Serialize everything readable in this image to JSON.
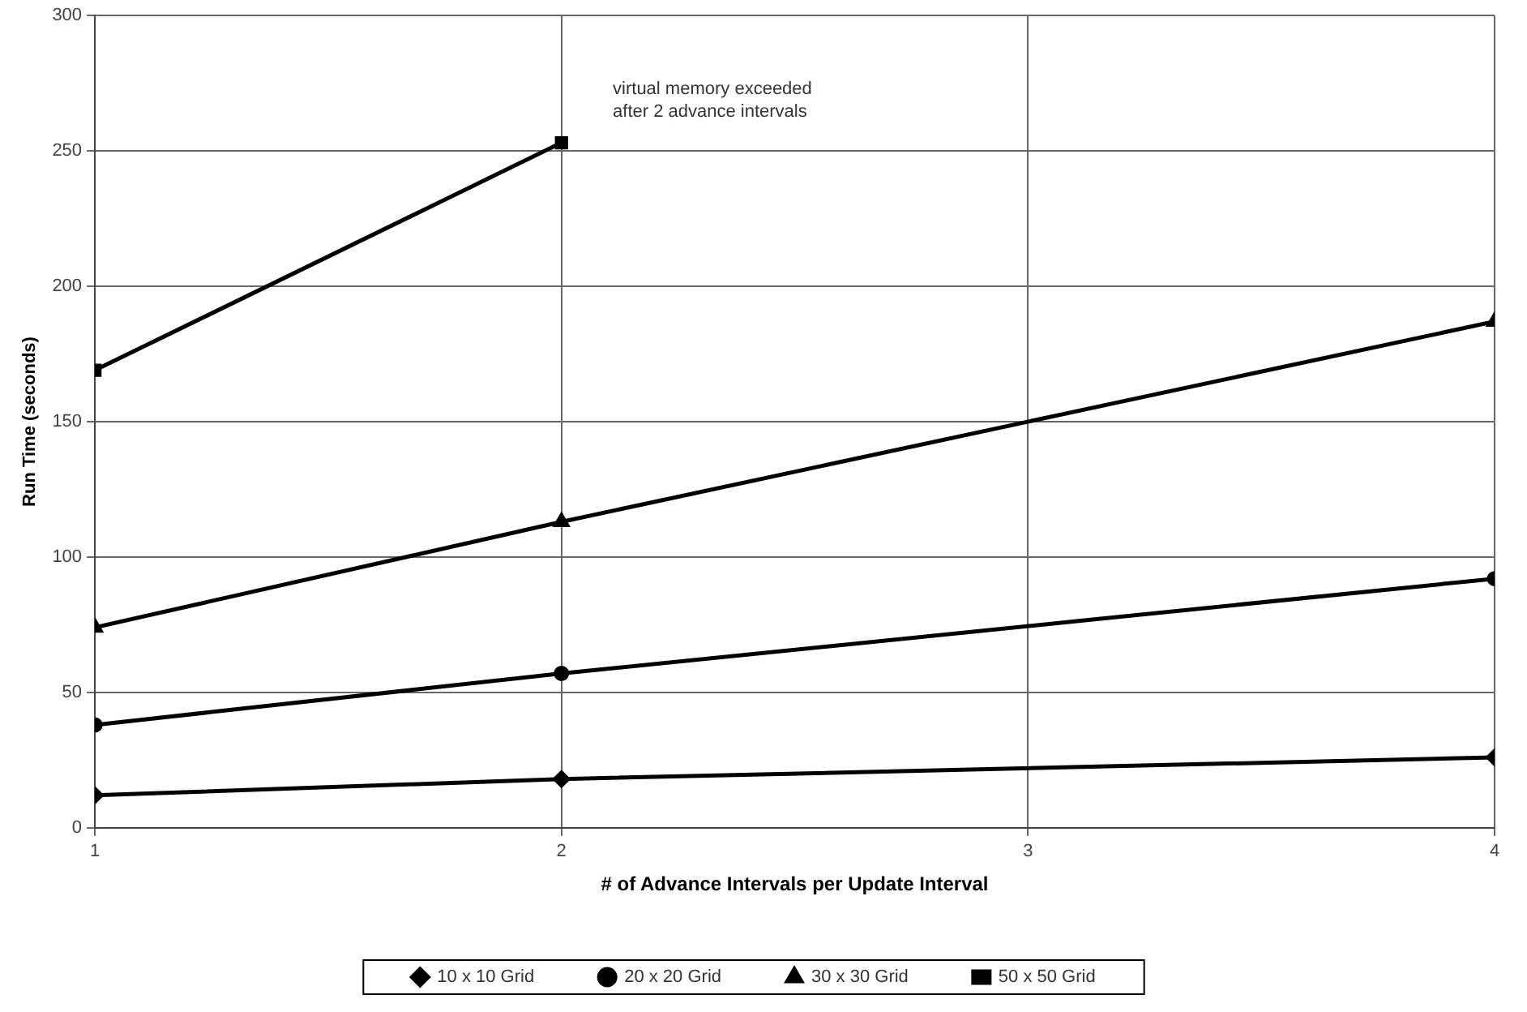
{
  "chart_data": {
    "type": "line",
    "xlabel": "# of Advance Intervals per Update Interval",
    "ylabel": "Run Time (seconds)",
    "x": [
      1,
      2,
      4
    ],
    "series": [
      {
        "name": "10 x 10 Grid",
        "color": "#000000",
        "marker": "diamond",
        "values": [
          12,
          18,
          26
        ]
      },
      {
        "name": "20 x 20 Grid",
        "color": "#000000",
        "marker": "circle",
        "values": [
          38,
          57,
          92
        ]
      },
      {
        "name": "30 x 30 Grid",
        "color": "#000000",
        "marker": "triangle",
        "values": [
          74,
          113,
          187
        ]
      },
      {
        "name": "50 x 50 Grid",
        "color": "#000000",
        "marker": "square",
        "values": [
          169,
          253,
          null
        ]
      }
    ],
    "xlim": [
      1,
      4
    ],
    "xticks": [
      1,
      2,
      3,
      4
    ],
    "ylim": [
      0,
      300
    ],
    "yticks": [
      0,
      50,
      100,
      150,
      200,
      250,
      300
    ],
    "grid": true,
    "legend": "bottom",
    "line_style": "solid",
    "annotations": [
      "virtual memory exceeded\nafter 2 advance intervals"
    ]
  }
}
